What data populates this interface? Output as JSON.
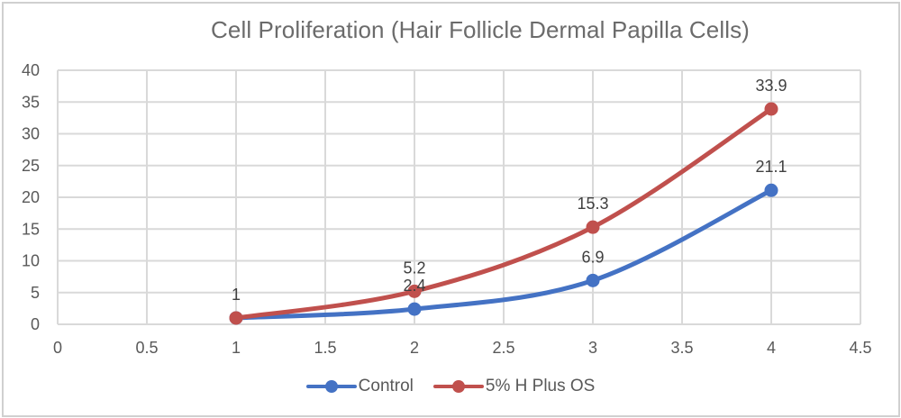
{
  "chart_data": {
    "type": "line",
    "smoothed": true,
    "title": "Cell Proliferation (Hair Follicle Dermal Papilla Cells)",
    "xlabel": "",
    "ylabel": "",
    "xlim": [
      0,
      4.5
    ],
    "ylim": [
      0,
      40
    ],
    "x_ticks": [
      "0",
      "0.5",
      "1",
      "1.5",
      "2",
      "2.5",
      "3",
      "3.5",
      "4",
      "4.5"
    ],
    "y_ticks": [
      "0",
      "5",
      "10",
      "15",
      "20",
      "25",
      "30",
      "35",
      "40"
    ],
    "grid": {
      "vertical": true,
      "horizontal": true
    },
    "legend_position": "bottom",
    "x": [
      1,
      2,
      3,
      4
    ],
    "series": [
      {
        "name": "Control",
        "color": "#4472C4",
        "values": [
          1,
          2.4,
          6.9,
          21.1
        ],
        "data_labels": [
          "",
          "2.4",
          "6.9",
          "21.1"
        ]
      },
      {
        "name": "5% H Plus OS",
        "color": "#C0504D",
        "values": [
          1,
          5.2,
          15.3,
          33.9
        ],
        "data_labels": [
          "1",
          "5.2",
          "15.3",
          "33.9"
        ]
      }
    ]
  },
  "legend": {
    "items": [
      {
        "label": "Control",
        "color": "#4472C4"
      },
      {
        "label": "5% H Plus OS",
        "color": "#C0504D"
      }
    ]
  },
  "colors": {
    "gridline": "#d9d9d9",
    "axis_text": "#595959",
    "title_text": "#6b6b6b",
    "border": "#d0d0d0"
  }
}
